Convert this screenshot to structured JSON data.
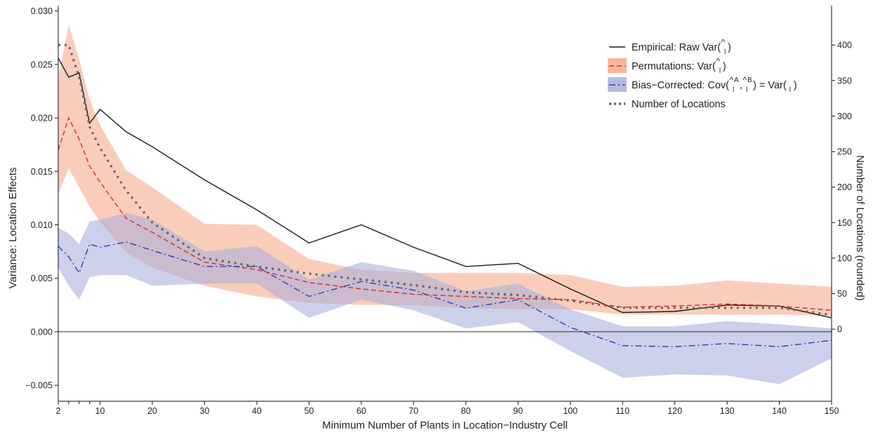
{
  "chart_data": {
    "type": "line",
    "xlabel": "Minimum Number of Plants in Location−Industry Cell",
    "ylabel_left": "Variance: Location Effects",
    "ylabel_right": "Number of Locations (rounded)",
    "xlim": [
      2,
      150
    ],
    "ylim_left": [
      -0.0065,
      0.0305
    ],
    "ylim_right": [
      -101.5,
      455.5
    ],
    "x_ticks": [
      2,
      10,
      20,
      30,
      40,
      50,
      60,
      70,
      80,
      90,
      100,
      110,
      120,
      130,
      140,
      150
    ],
    "x_minor_ticks": [
      4,
      6,
      8
    ],
    "y_left_ticks": [
      -0.005,
      0.0,
      0.005,
      0.01,
      0.015,
      0.02,
      0.025,
      0.03
    ],
    "y_left_tick_labels": [
      "−0.005",
      "0.000",
      "0.005",
      "0.010",
      "0.015",
      "0.020",
      "0.025",
      "0.030"
    ],
    "y_right_ticks": [
      0,
      50,
      100,
      150,
      200,
      250,
      300,
      350,
      400
    ],
    "hline_y": 0,
    "grid": false,
    "legend_position": "top-right",
    "series": [
      {
        "name": "Empirical: Raw Var(ψ̂l)",
        "color": "#1a1a1a",
        "style": "solid",
        "axis": "left",
        "x": [
          2,
          4,
          6,
          8,
          10,
          15,
          20,
          30,
          40,
          50,
          60,
          70,
          80,
          90,
          100,
          110,
          120,
          130,
          140,
          150
        ],
        "y": [
          0.0256,
          0.0238,
          0.0242,
          0.0195,
          0.0208,
          0.0187,
          0.0173,
          0.0142,
          0.0114,
          0.0083,
          0.01,
          0.0079,
          0.0061,
          0.0064,
          0.004,
          0.0018,
          0.0019,
          0.0025,
          0.0024,
          0.0013
        ]
      },
      {
        "name": "Permutations: Var(ψ̂l)",
        "color": "#d62a2a",
        "style": "dashed",
        "axis": "left",
        "band_color": "#f6a98a",
        "x": [
          2,
          4,
          6,
          8,
          10,
          15,
          20,
          30,
          40,
          50,
          60,
          70,
          80,
          90,
          100,
          110,
          120,
          130,
          140,
          150
        ],
        "y": [
          0.017,
          0.02,
          0.018,
          0.0155,
          0.014,
          0.0106,
          0.0093,
          0.0065,
          0.0058,
          0.0046,
          0.004,
          0.0035,
          0.0033,
          0.0031,
          0.003,
          0.0023,
          0.0024,
          0.0026,
          0.0024,
          0.002
        ],
        "lower": [
          0.0129,
          0.0153,
          0.0135,
          0.0117,
          0.0103,
          0.0074,
          0.006,
          0.0043,
          0.0033,
          0.0027,
          0.0025,
          0.0025,
          0.0022,
          0.0021,
          0.0021,
          0.0016,
          0.0016,
          0.0016,
          0.0016,
          0.0015
        ],
        "upper": [
          0.0238,
          0.0287,
          0.0255,
          0.0217,
          0.0193,
          0.0151,
          0.0135,
          0.0101,
          0.01,
          0.0068,
          0.0058,
          0.0055,
          0.0055,
          0.0055,
          0.0053,
          0.0042,
          0.0043,
          0.0048,
          0.0045,
          0.0042
        ]
      },
      {
        "name": "Bias−Corrected: Cov(ψ̂lᴬ, ψ̂lᴮ) = Var(ψl)",
        "color": "#2b3fb0",
        "style": "dashdot",
        "axis": "left",
        "band_color": "#a9aedb",
        "x": [
          2,
          4,
          6,
          8,
          10,
          15,
          20,
          30,
          40,
          50,
          60,
          70,
          80,
          90,
          100,
          110,
          120,
          130,
          140,
          150
        ],
        "y": [
          0.008,
          0.007,
          0.0055,
          0.0082,
          0.0079,
          0.0084,
          0.0076,
          0.0061,
          0.0061,
          0.0033,
          0.0047,
          0.0039,
          0.0022,
          0.003,
          0.0004,
          -0.0013,
          -0.0014,
          -0.0011,
          -0.0014,
          -0.0008
        ],
        "lower": [
          0.006,
          0.0043,
          0.003,
          0.0051,
          0.0053,
          0.0053,
          0.0043,
          0.0045,
          0.0045,
          0.0013,
          0.003,
          0.002,
          0.0003,
          0.0009,
          -0.0018,
          -0.0043,
          -0.004,
          -0.0041,
          -0.0049,
          -0.0025
        ],
        "upper": [
          0.0097,
          0.0092,
          0.0082,
          0.0103,
          0.0105,
          0.0111,
          0.0105,
          0.0075,
          0.008,
          0.0049,
          0.0065,
          0.0057,
          0.0038,
          0.0045,
          0.0021,
          0.0005,
          0.0005,
          0.001,
          0.0007,
          0.0003
        ]
      },
      {
        "name": "Number of Locations",
        "color": "#666666",
        "style": "dotted",
        "axis": "right",
        "x": [
          2,
          4,
          6,
          8,
          10,
          15,
          20,
          30,
          40,
          50,
          60,
          70,
          80,
          90,
          100,
          110,
          120,
          130,
          140,
          150
        ],
        "y": [
          400,
          400,
          355,
          285,
          255,
          195,
          150,
          100,
          88,
          78,
          70,
          62,
          52,
          48,
          40,
          30,
          30,
          30,
          30,
          20
        ]
      }
    ]
  },
  "legend": {
    "entries": [
      {
        "prefix": "Empirical: Raw Var(",
        "suffix": ")"
      },
      {
        "prefix": "Permutations: Var(",
        "suffix": ")"
      },
      {
        "prefix": "Bias−Corrected: Cov(",
        "mid": ", ",
        "post": ") = Var(",
        "suffix": ")"
      },
      {
        "prefix": "Number of Locations",
        "suffix": ""
      }
    ],
    "subscript": "l",
    "superscript_a": "A",
    "superscript_b": "B",
    "hat": "^"
  }
}
